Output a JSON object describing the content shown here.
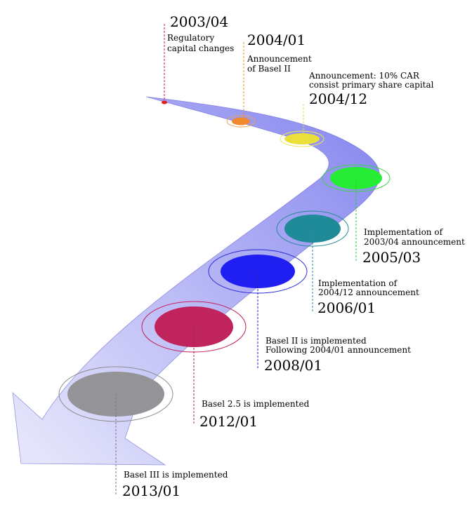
{
  "colors": {
    "arrow_start": "#8a8af0",
    "arrow_end": "#e4e4fb",
    "arrow_edge": "#5a5ad0"
  },
  "milestones": [
    {
      "date": "2003/04",
      "lines": [
        "Regulatory",
        "capital changes"
      ],
      "fill": "#e81c1c",
      "ring": "",
      "guide": "#c81a3c"
    },
    {
      "date": "2004/01",
      "lines": [
        "Announcement",
        "of Basel II"
      ],
      "fill": "#f08a2c",
      "ring": "#f0a050",
      "guide": "#e0902a"
    },
    {
      "date": "2004/12",
      "lines": [
        "Announcement: 10% CAR",
        "consist primary share capital"
      ],
      "fill": "#ebe03a",
      "ring": "#efe65e",
      "guide": "#e8d840"
    },
    {
      "date": "2005/03",
      "lines": [
        "Implementation of",
        "2003/04 announcement"
      ],
      "fill": "#27ec35",
      "ring": "#3ed24a",
      "guide": "#30c840"
    },
    {
      "date": "2006/01",
      "lines": [
        "Implementation of",
        "2004/12 announcement"
      ],
      "fill": "#1f8a98",
      "ring": "#258b96",
      "guide": "#2a8ea0"
    },
    {
      "date": "2008/01",
      "lines": [
        "Basel II is implemented",
        "Following 2004/01 announcement"
      ],
      "fill": "#1f1ff2",
      "ring": "#2b2bd8",
      "guide": "#2020c0"
    },
    {
      "date": "2012/01",
      "lines": [
        "Basel 2.5 is implemented"
      ],
      "fill": "#c0245c",
      "ring": "#c4205a",
      "guide": "#b0205a"
    },
    {
      "date": "2013/01",
      "lines": [
        "Basel III is implemented"
      ],
      "fill": "#949498",
      "ring": "#8c8c90",
      "guide": "#906a90"
    }
  ]
}
